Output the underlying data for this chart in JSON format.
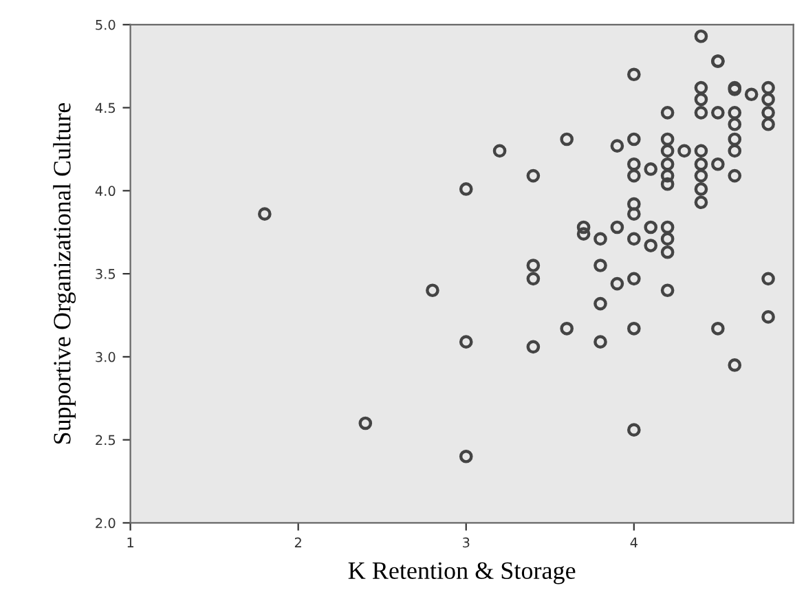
{
  "chart_data": {
    "type": "scatter",
    "xlabel": "K Retention & Storage",
    "ylabel": "Supportive Organizational Culture",
    "xlim": [
      1,
      4.95
    ],
    "ylim": [
      2.0,
      5.0
    ],
    "xticks": [
      1,
      2,
      3,
      4
    ],
    "yticks": [
      {
        "value": 2.0,
        "label": "2.0"
      },
      {
        "value": 2.5,
        "label": "2.5"
      },
      {
        "value": 3.0,
        "label": "3.0"
      },
      {
        "value": 3.5,
        "label": "3.5"
      },
      {
        "value": 4.0,
        "label": "4.0"
      },
      {
        "value": 4.5,
        "label": "4.5"
      },
      {
        "value": 5.0,
        "label": "5.0"
      }
    ],
    "grid": false,
    "marker": "circle",
    "series": [
      {
        "color": "#444444",
        "x": [
          1.8,
          2.4,
          2.8,
          3.0,
          3.0,
          3.0,
          3.2,
          3.4,
          3.4,
          3.4,
          3.4,
          3.6,
          3.6,
          3.7,
          3.7,
          3.8,
          3.8,
          3.8,
          3.8,
          3.9,
          3.9,
          3.9,
          4.0,
          4.0,
          4.0,
          4.0,
          4.0,
          4.0,
          4.0,
          4.0,
          4.0,
          4.0,
          4.1,
          4.1,
          4.1,
          4.2,
          4.2,
          4.2,
          4.2,
          4.2,
          4.2,
          4.2,
          4.2,
          4.2,
          4.2,
          4.3,
          4.4,
          4.4,
          4.4,
          4.4,
          4.4,
          4.4,
          4.4,
          4.4,
          4.4,
          4.5,
          4.5,
          4.5,
          4.5,
          4.5,
          4.6,
          4.6,
          4.6,
          4.6,
          4.6,
          4.6,
          4.6,
          4.6,
          4.7,
          4.8,
          4.8,
          4.8,
          4.8,
          4.8,
          4.8
        ],
        "values": [
          3.86,
          2.6,
          3.4,
          4.01,
          3.09,
          2.4,
          4.24,
          4.09,
          3.55,
          3.47,
          3.06,
          4.31,
          3.17,
          3.78,
          3.74,
          3.71,
          3.55,
          3.32,
          3.09,
          4.27,
          3.78,
          3.44,
          4.7,
          4.31,
          4.16,
          4.09,
          3.92,
          3.86,
          3.71,
          3.47,
          3.17,
          2.56,
          4.13,
          3.78,
          3.67,
          4.47,
          4.31,
          4.24,
          4.16,
          4.09,
          4.04,
          3.78,
          3.71,
          3.63,
          3.4,
          4.24,
          4.93,
          4.62,
          4.55,
          4.47,
          4.24,
          4.16,
          4.09,
          4.01,
          3.93,
          4.78,
          4.47,
          4.16,
          3.17,
          4.78,
          4.61,
          4.62,
          4.47,
          4.4,
          4.31,
          4.24,
          4.09,
          2.95,
          4.58,
          4.62,
          4.55,
          4.47,
          4.4,
          3.47,
          3.24
        ]
      }
    ]
  }
}
